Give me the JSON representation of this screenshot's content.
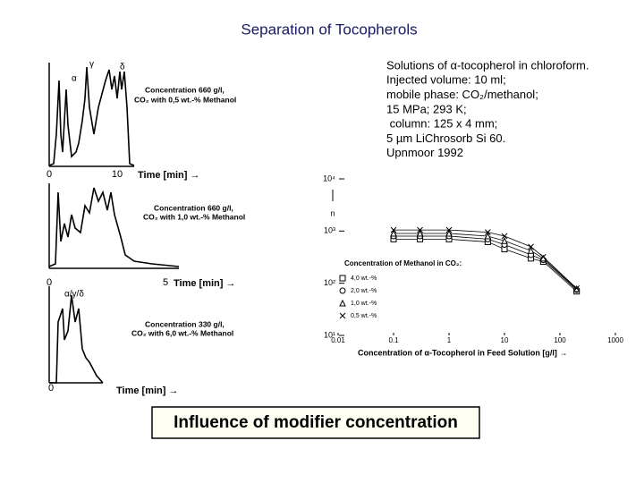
{
  "title": "Separation of Tocopherols",
  "chromatograms": [
    {
      "peaks": [
        "α",
        "γ",
        "δ"
      ],
      "note": [
        "Concentration 660 g/l,",
        "CO₂ with 0,5 wt.-% Methanol"
      ],
      "axis": [
        "0",
        "10"
      ],
      "time_label": "Time [min] →"
    },
    {
      "note": [
        "Concentration 660 g/l,",
        "CO₂ with 1,0 wt.-% Methanol"
      ],
      "axis": [
        "0",
        "5"
      ],
      "time_label": "Time [min] →"
    },
    {
      "peaks": [
        "α/γ/δ"
      ],
      "note": [
        "Concentration 330 g/l,",
        "CO₂ with 6,0 wt.-% Methanol"
      ],
      "axis": [
        "0"
      ],
      "time_label": "Time [min] →"
    }
  ],
  "conditions": [
    "Solutions of α-tocopherol in chloroform.",
    "Injected volume: 10 ml;",
    "mobile phase: CO₂/methanol;",
    "15 MPa; 293 K;",
    " column: 125 x 4 mm;",
    "5 µm LiChrosorb Si 60.",
    "Upnmoor 1992"
  ],
  "plot": {
    "ylabel": "n",
    "xlabel": "Concentration of α-Tocopherol in Feed Solution [g/l] →",
    "log_x": true,
    "log_y": true,
    "xlim": [
      0.01,
      1000
    ],
    "ylim": [
      10,
      10000
    ],
    "xticks": [
      0.01,
      0.1,
      1,
      10,
      100,
      1000
    ],
    "yticks": [
      {
        "value": 10,
        "label": "10¹"
      },
      {
        "value": 100,
        "label": "10²"
      },
      {
        "value": 1000,
        "label": "10³"
      },
      {
        "value": 10000,
        "label": "10⁴"
      }
    ],
    "legend_title": "Concentration of Methanol in CO₂:",
    "series": [
      {
        "name": "4,0 wt.-%",
        "marker": "square",
        "x": [
          0.1,
          0.3,
          1,
          5,
          10,
          30,
          50,
          200
        ],
        "values": [
          700,
          700,
          700,
          620,
          450,
          300,
          260,
          70
        ]
      },
      {
        "name": "2,0 wt.-%",
        "marker": "circle",
        "x": [
          0.1,
          0.3,
          1,
          5,
          10,
          30,
          50,
          200
        ],
        "values": [
          800,
          800,
          800,
          700,
          550,
          350,
          280,
          75
        ]
      },
      {
        "name": "1,0 wt.-%",
        "marker": "triangle",
        "x": [
          0.1,
          0.3,
          1,
          5,
          10,
          30,
          50,
          200
        ],
        "values": [
          900,
          900,
          900,
          800,
          650,
          420,
          300,
          78
        ]
      },
      {
        "name": "0,5 wt.-%",
        "marker": "cross",
        "x": [
          0.1,
          0.3,
          1,
          5,
          10,
          30,
          50,
          200
        ],
        "values": [
          1050,
          1050,
          1050,
          950,
          800,
          500,
          320,
          80
        ]
      }
    ]
  },
  "caption": "Influence of modifier concentration"
}
